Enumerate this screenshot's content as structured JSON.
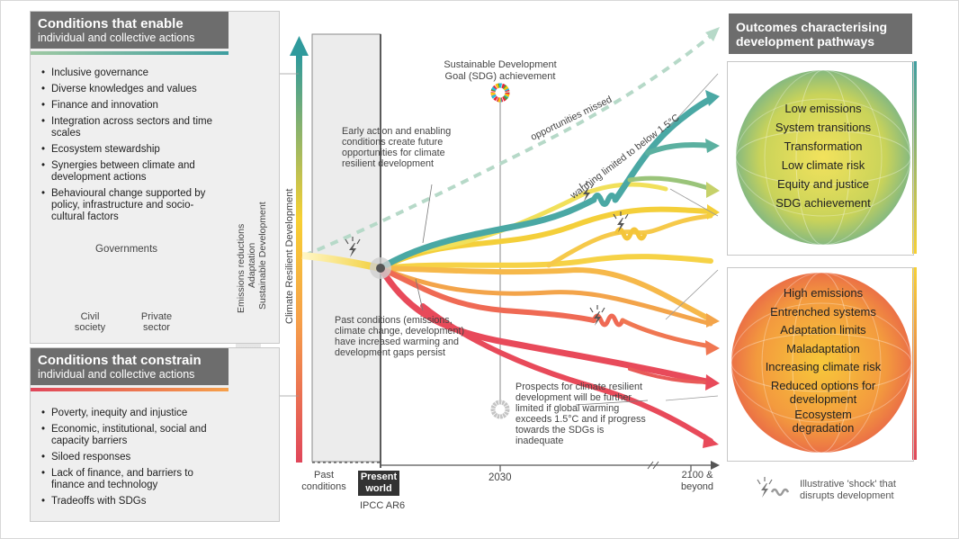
{
  "enable_panel": {
    "title": "Conditions that enable",
    "subtitle": "individual and collective actions",
    "items": [
      "Inclusive governance",
      "Diverse knowledges and values",
      "Finance and innovation",
      "Integration across sectors and time scales",
      "Ecosystem stewardship",
      "Synergies between climate and development actions",
      "Behavioural change supported by policy, infrastructure and socio-cultural factors"
    ],
    "actors": {
      "governments": "Governments",
      "civil_society": "Civil society",
      "private_sector": "Private sector"
    }
  },
  "constrain_panel": {
    "title": "Conditions that constrain",
    "subtitle": "individual and collective actions",
    "items": [
      "Poverty, inequity and injustice",
      "Economic, institutional, social and capacity barriers",
      "Siloed responses",
      "Lack of finance, and barriers to finance and technology",
      "Tradeoffs with SDGs"
    ]
  },
  "vertical_labels": {
    "emissions": "Emissions reductions",
    "adaptation": "Adaptation",
    "sustainable": "Sustainable Development",
    "crd": "Climate Resilient Development"
  },
  "annotations": {
    "sdg": "Sustainable Development Goal (SDG) achievement",
    "early_action": "Early action and enabling conditions create future opportunities for climate resilient development",
    "opportunities_missed": "opportunities missed",
    "warming_limited": "warming limited to below 1.5°C",
    "past_conditions": "Past conditions (emissions, climate change, development) have increased warming and development gaps persist",
    "prospects": "Prospects for climate resilient development will be further limited if global warming exceeds 1.5°C and if progress towards the SDGs is inadequate"
  },
  "timeline": {
    "past": "Past conditions",
    "present": "Present world",
    "ipcc": "IPCC AR6",
    "y2030": "2030",
    "y2100": "2100 & beyond"
  },
  "outcomes": {
    "title": "Outcomes characterising development pathways",
    "positive": [
      "Low emissions",
      "System transitions",
      "Transformation",
      "Low climate risk",
      "Equity and justice",
      "SDG achievement"
    ],
    "negative": [
      "High emissions",
      "Entrenched systems",
      "Adaptation limits",
      "Maladaptation",
      "Increasing climate risk",
      "Reduced options for development",
      "Ecosystem degradation"
    ]
  },
  "legend": {
    "shock": "Illustrative 'shock' that disrupts development"
  },
  "colors": {
    "teal": "#3e9ea0",
    "yellow": "#f7d033",
    "red": "#e0465a",
    "orange": "#f6a04a",
    "panel_header": "#6d6d6d"
  }
}
